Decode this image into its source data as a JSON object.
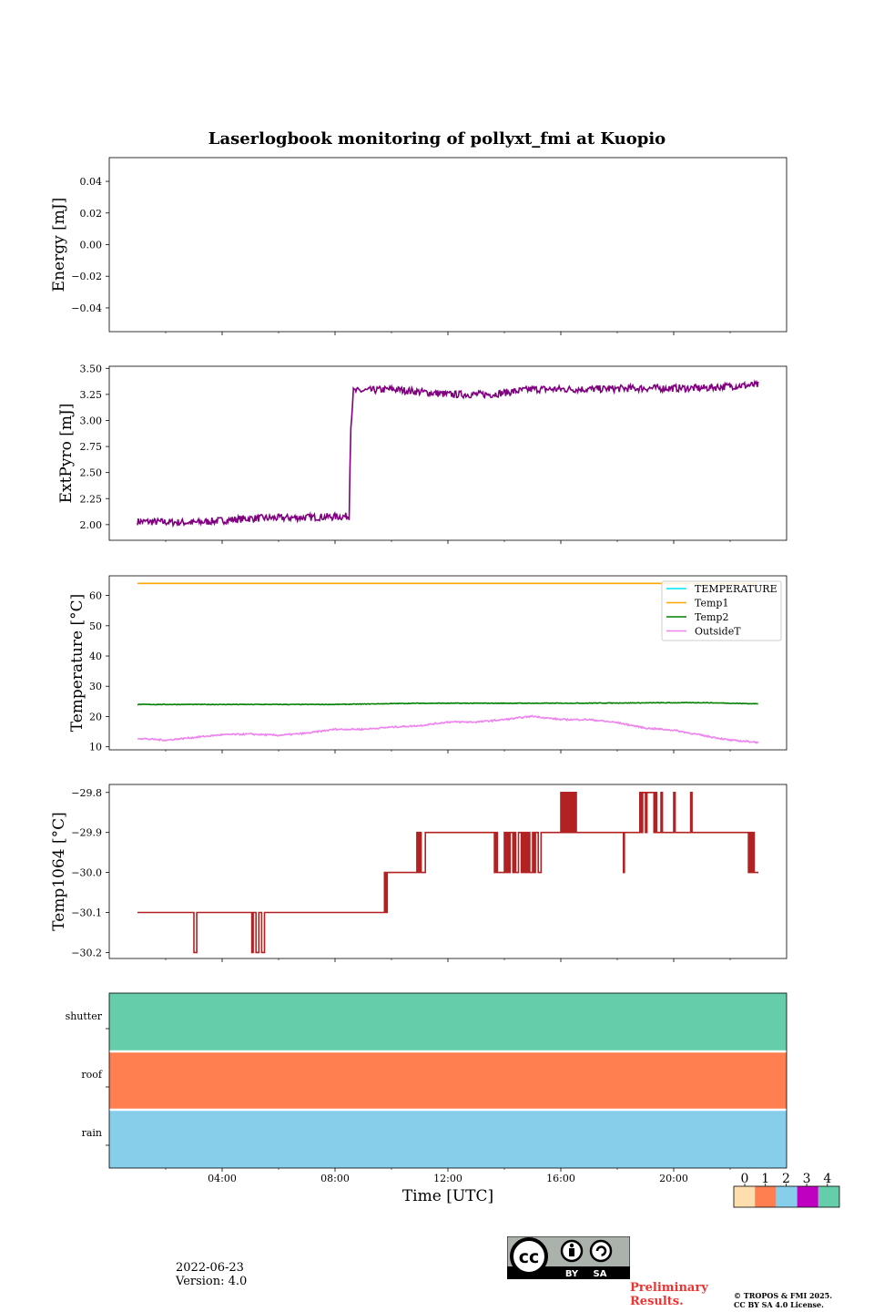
{
  "title": "Laserlogbook monitoring of pollyxt_fmi at Kuopio",
  "xlabel": "Time [UTC]",
  "footer": {
    "date": "2022-06-23",
    "version": "Version: 4.0",
    "preliminary_1": "Preliminary",
    "preliminary_2": "Results.",
    "copyright_1": "© TROPOS & FMI 2025.",
    "copyright_2": "CC BY SA 4.0 License.",
    "cc_label_by": "BY",
    "cc_label_sa": "SA",
    "cc_mark": "cc"
  },
  "chart_data": [
    {
      "type": "line",
      "ylabel": "Energy [mJ]",
      "ylim": [
        -0.055,
        0.055
      ],
      "yticks": [
        0.04,
        0.02,
        0.0,
        -0.02,
        -0.04
      ],
      "yticklabels": [
        "0.04",
        "0.02",
        "0.00",
        "−0.02",
        "−0.04"
      ],
      "series": []
    },
    {
      "type": "line",
      "ylabel": "ExtPyro [mJ]",
      "ylim": [
        1.85,
        3.52
      ],
      "yticks": [
        3.5,
        3.25,
        3.0,
        2.75,
        2.5,
        2.25,
        2.0
      ],
      "yticklabels": [
        "3.50",
        "3.25",
        "3.00",
        "2.75",
        "2.50",
        "2.25",
        "2.00"
      ],
      "series": [
        {
          "name": "ExtPyro",
          "color": "#800080",
          "anchors": [
            [
              1.0,
              2.03
            ],
            [
              3.0,
              2.02
            ],
            [
              5.0,
              2.06
            ],
            [
              7.0,
              2.07
            ],
            [
              8.5,
              2.08
            ],
            [
              8.55,
              2.9
            ],
            [
              8.65,
              3.28
            ],
            [
              10.0,
              3.3
            ],
            [
              12.0,
              3.25
            ],
            [
              13.5,
              3.25
            ],
            [
              15.0,
              3.3
            ],
            [
              17.0,
              3.3
            ],
            [
              19.0,
              3.31
            ],
            [
              21.0,
              3.31
            ],
            [
              22.0,
              3.33
            ],
            [
              23.0,
              3.34
            ]
          ],
          "noise": 0.035
        }
      ]
    },
    {
      "type": "line",
      "ylabel": "Temperature [°C]",
      "ylim": [
        9,
        66.5
      ],
      "yticks": [
        60,
        50,
        40,
        30,
        20,
        10
      ],
      "yticklabels": [
        "60",
        "50",
        "40",
        "30",
        "20",
        "10"
      ],
      "legend": [
        "TEMPERATURE",
        "Temp1",
        "Temp2",
        "OutsideT"
      ],
      "series": [
        {
          "name": "TEMPERATURE",
          "color": "#00e5ee",
          "anchors": [],
          "noise": 0
        },
        {
          "name": "Temp1",
          "color": "#ffa500",
          "anchors": [
            [
              1.0,
              64.0
            ],
            [
              23.0,
              64.0
            ]
          ],
          "noise": 0
        },
        {
          "name": "Temp2",
          "color": "#008000",
          "anchors": [
            [
              1.0,
              24.0
            ],
            [
              8.0,
              24.0
            ],
            [
              11.0,
              24.4
            ],
            [
              16.0,
              24.4
            ],
            [
              21.0,
              24.6
            ],
            [
              23.0,
              24.2
            ]
          ],
          "noise": 0.1
        },
        {
          "name": "OutsideT",
          "color": "#ee82ee",
          "anchors": [
            [
              1.0,
              12.8
            ],
            [
              2.0,
              12.2
            ],
            [
              4.0,
              14.0
            ],
            [
              5.0,
              14.2
            ],
            [
              6.0,
              13.8
            ],
            [
              7.0,
              14.5
            ],
            [
              8.0,
              15.8
            ],
            [
              9.0,
              15.8
            ],
            [
              10.0,
              16.5
            ],
            [
              11.0,
              17.0
            ],
            [
              12.0,
              18.2
            ],
            [
              13.0,
              18.2
            ],
            [
              14.0,
              19.0
            ],
            [
              15.0,
              20.1
            ],
            [
              16.0,
              19.0
            ],
            [
              17.0,
              19.0
            ],
            [
              18.0,
              18.0
            ],
            [
              19.0,
              16.2
            ],
            [
              20.0,
              15.5
            ],
            [
              21.0,
              13.8
            ],
            [
              22.0,
              12.2
            ],
            [
              23.0,
              11.5
            ]
          ],
          "noise": 0.25
        }
      ]
    },
    {
      "type": "line",
      "ylabel": "Temp1064 [°C]",
      "ylim": [
        -30.215,
        -29.78
      ],
      "yticks": [
        -29.8,
        -29.9,
        -30.0,
        -30.1,
        -30.2
      ],
      "yticklabels": [
        "−29.8",
        "−29.9",
        "−30.0",
        "−30.1",
        "−30.2"
      ],
      "series": [
        {
          "name": "Temp1064",
          "color": "#b22222",
          "steps": [
            [
              1.0,
              -30.1
            ],
            [
              2.3,
              -30.1
            ],
            [
              2.3,
              -30.1
            ],
            [
              3.0,
              -30.2
            ],
            [
              3.1,
              -30.2
            ],
            [
              3.1,
              -30.1
            ],
            [
              5.0,
              -30.1
            ],
            [
              5.05,
              -30.2
            ],
            [
              5.1,
              -30.1
            ],
            [
              5.2,
              -30.2
            ],
            [
              5.3,
              -30.1
            ],
            [
              5.4,
              -30.2
            ],
            [
              5.5,
              -30.1
            ],
            [
              9.7,
              -30.1
            ],
            [
              9.75,
              -30.0
            ],
            [
              9.8,
              -30.1
            ],
            [
              9.85,
              -30.0
            ],
            [
              10.9,
              -30.0
            ],
            [
              10.9,
              -29.9
            ],
            [
              10.95,
              -30.0
            ],
            [
              11.0,
              -29.9
            ],
            [
              11.05,
              -30.0
            ],
            [
              11.2,
              -30.0
            ],
            [
              11.2,
              -29.9
            ],
            [
              13.6,
              -29.9
            ],
            [
              13.65,
              -30.0
            ],
            [
              13.7,
              -29.9
            ],
            [
              13.75,
              -30.0
            ],
            [
              14.0,
              -30.0
            ],
            [
              14.0,
              -29.9
            ],
            [
              14.05,
              -30.0
            ],
            [
              14.1,
              -29.9
            ],
            [
              14.15,
              -30.0
            ],
            [
              14.2,
              -29.9
            ],
            [
              14.3,
              -30.0
            ],
            [
              14.35,
              -29.9
            ],
            [
              14.4,
              -30.0
            ],
            [
              14.5,
              -29.9
            ],
            [
              14.6,
              -30.0
            ],
            [
              14.65,
              -29.9
            ],
            [
              14.7,
              -30.0
            ],
            [
              14.75,
              -29.9
            ],
            [
              14.8,
              -30.0
            ],
            [
              14.85,
              -29.9
            ],
            [
              14.9,
              -30.0
            ],
            [
              15.0,
              -29.9
            ],
            [
              15.05,
              -30.0
            ],
            [
              15.1,
              -29.9
            ],
            [
              15.2,
              -30.0
            ],
            [
              15.3,
              -29.9
            ],
            [
              16.0,
              -29.9
            ],
            [
              16.0,
              -29.8
            ],
            [
              16.05,
              -29.9
            ],
            [
              16.1,
              -29.8
            ],
            [
              16.15,
              -29.9
            ],
            [
              16.2,
              -29.8
            ],
            [
              16.25,
              -29.9
            ],
            [
              16.3,
              -29.8
            ],
            [
              16.35,
              -29.9
            ],
            [
              16.4,
              -29.8
            ],
            [
              16.45,
              -29.9
            ],
            [
              16.5,
              -29.8
            ],
            [
              16.55,
              -29.9
            ],
            [
              18.2,
              -29.9
            ],
            [
              18.22,
              -30.0
            ],
            [
              18.25,
              -29.9
            ],
            [
              18.8,
              -29.9
            ],
            [
              18.8,
              -29.8
            ],
            [
              18.85,
              -29.9
            ],
            [
              18.9,
              -29.8
            ],
            [
              19.0,
              -29.9
            ],
            [
              19.05,
              -29.8
            ],
            [
              19.3,
              -29.8
            ],
            [
              19.3,
              -29.9
            ],
            [
              19.35,
              -29.8
            ],
            [
              19.4,
              -29.9
            ],
            [
              19.5,
              -29.9
            ],
            [
              19.55,
              -29.8
            ],
            [
              19.6,
              -29.9
            ],
            [
              20.0,
              -29.9
            ],
            [
              20.0,
              -29.8
            ],
            [
              20.05,
              -29.9
            ],
            [
              20.6,
              -29.9
            ],
            [
              20.6,
              -29.8
            ],
            [
              20.65,
              -29.9
            ],
            [
              22.6,
              -29.9
            ],
            [
              22.65,
              -30.0
            ],
            [
              22.7,
              -29.9
            ],
            [
              22.75,
              -30.0
            ],
            [
              22.8,
              -29.9
            ],
            [
              22.85,
              -30.0
            ],
            [
              23.0,
              -30.0
            ]
          ]
        }
      ]
    },
    {
      "type": "heatmap",
      "rows": [
        "shutter",
        "roof",
        "rain"
      ],
      "row_values": [
        4,
        1,
        2
      ],
      "xticks": [
        4,
        8,
        12,
        16,
        20
      ],
      "xticklabels": [
        "04:00",
        "08:00",
        "12:00",
        "16:00",
        "20:00"
      ],
      "xlim": [
        0,
        24
      ],
      "colorbar": {
        "ticks": [
          "0",
          "1",
          "2",
          "3",
          "4"
        ],
        "colors": [
          "#ffdead",
          "#ff7f50",
          "#87ceeb",
          "#c000c0",
          "#66cdaa"
        ]
      }
    }
  ]
}
